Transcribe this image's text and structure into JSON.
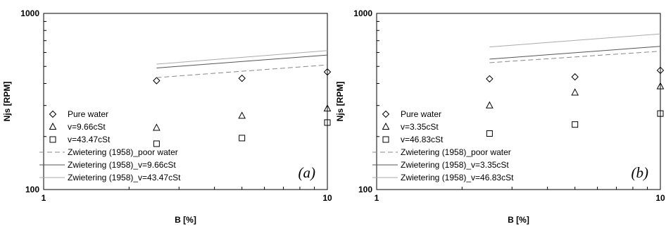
{
  "chart_data": [
    {
      "type": "scatter",
      "panel_label": "(a)",
      "xlabel": "B [%]",
      "ylabel": "Njs [RPM]",
      "xscale": "log",
      "yscale": "log",
      "xlim": [
        1,
        10
      ],
      "ylim": [
        100,
        1000
      ],
      "x_ticks": [
        "1",
        "10"
      ],
      "y_ticks": [
        "100",
        "1000"
      ],
      "grid": false,
      "legend_position": "bottom-left",
      "series": [
        {
          "name": "Pure water",
          "kind": "points",
          "marker": "diamond",
          "x": [
            2.5,
            5,
            10
          ],
          "y": [
            415,
            428,
            465
          ]
        },
        {
          "name": "v=9.66cSt",
          "kind": "points",
          "marker": "triangle",
          "x": [
            2.5,
            5,
            10
          ],
          "y": [
            224,
            262,
            288
          ]
        },
        {
          "name": "v=43.47cSt",
          "kind": "points",
          "marker": "square",
          "x": [
            2.5,
            5,
            10
          ],
          "y": [
            182,
            196,
            240
          ]
        },
        {
          "name": "Zwietering (1958)_poor water",
          "kind": "line",
          "dash": "dashed",
          "color": "#888888",
          "x": [
            2.5,
            10
          ],
          "y": [
            432,
            510
          ]
        },
        {
          "name": "Zwietering (1958)_v=9.66cSt",
          "kind": "line",
          "dash": "solid",
          "color": "#555555",
          "x": [
            2.5,
            10
          ],
          "y": [
            490,
            580
          ]
        },
        {
          "name": "Zwietering (1958)_v=43.47cSt",
          "kind": "line",
          "dash": "solid",
          "color": "#aaaaaa",
          "x": [
            2.5,
            10
          ],
          "y": [
            515,
            615
          ]
        }
      ]
    },
    {
      "type": "scatter",
      "panel_label": "(b)",
      "xlabel": "B [%]",
      "ylabel": "Njs [RPM]",
      "xscale": "log",
      "yscale": "log",
      "xlim": [
        1,
        10
      ],
      "ylim": [
        100,
        1000
      ],
      "x_ticks": [
        "1",
        "10"
      ],
      "y_ticks": [
        "100",
        "1000"
      ],
      "grid": false,
      "legend_position": "bottom-left",
      "series": [
        {
          "name": "Pure water",
          "kind": "points",
          "marker": "diamond",
          "x": [
            2.5,
            5,
            10
          ],
          "y": [
            425,
            436,
            475
          ]
        },
        {
          "name": "v=3.35cSt",
          "kind": "points",
          "marker": "triangle",
          "x": [
            2.5,
            5,
            10
          ],
          "y": [
            300,
            355,
            385
          ]
        },
        {
          "name": "v=46.83cSt",
          "kind": "points",
          "marker": "square",
          "x": [
            2.5,
            5,
            10
          ],
          "y": [
            208,
            234,
            270
          ]
        },
        {
          "name": "Zwietering (1958)_poor water",
          "kind": "line",
          "dash": "dashed",
          "color": "#888888",
          "x": [
            2.5,
            10
          ],
          "y": [
            525,
            610
          ]
        },
        {
          "name": "Zwietering (1958)_v=3.35cSt",
          "kind": "line",
          "dash": "solid",
          "color": "#555555",
          "x": [
            2.5,
            10
          ],
          "y": [
            550,
            650
          ]
        },
        {
          "name": "Zwietering (1958)_v=46.83cSt",
          "kind": "line",
          "dash": "solid",
          "color": "#aaaaaa",
          "x": [
            2.5,
            10
          ],
          "y": [
            645,
            765
          ]
        }
      ]
    }
  ]
}
